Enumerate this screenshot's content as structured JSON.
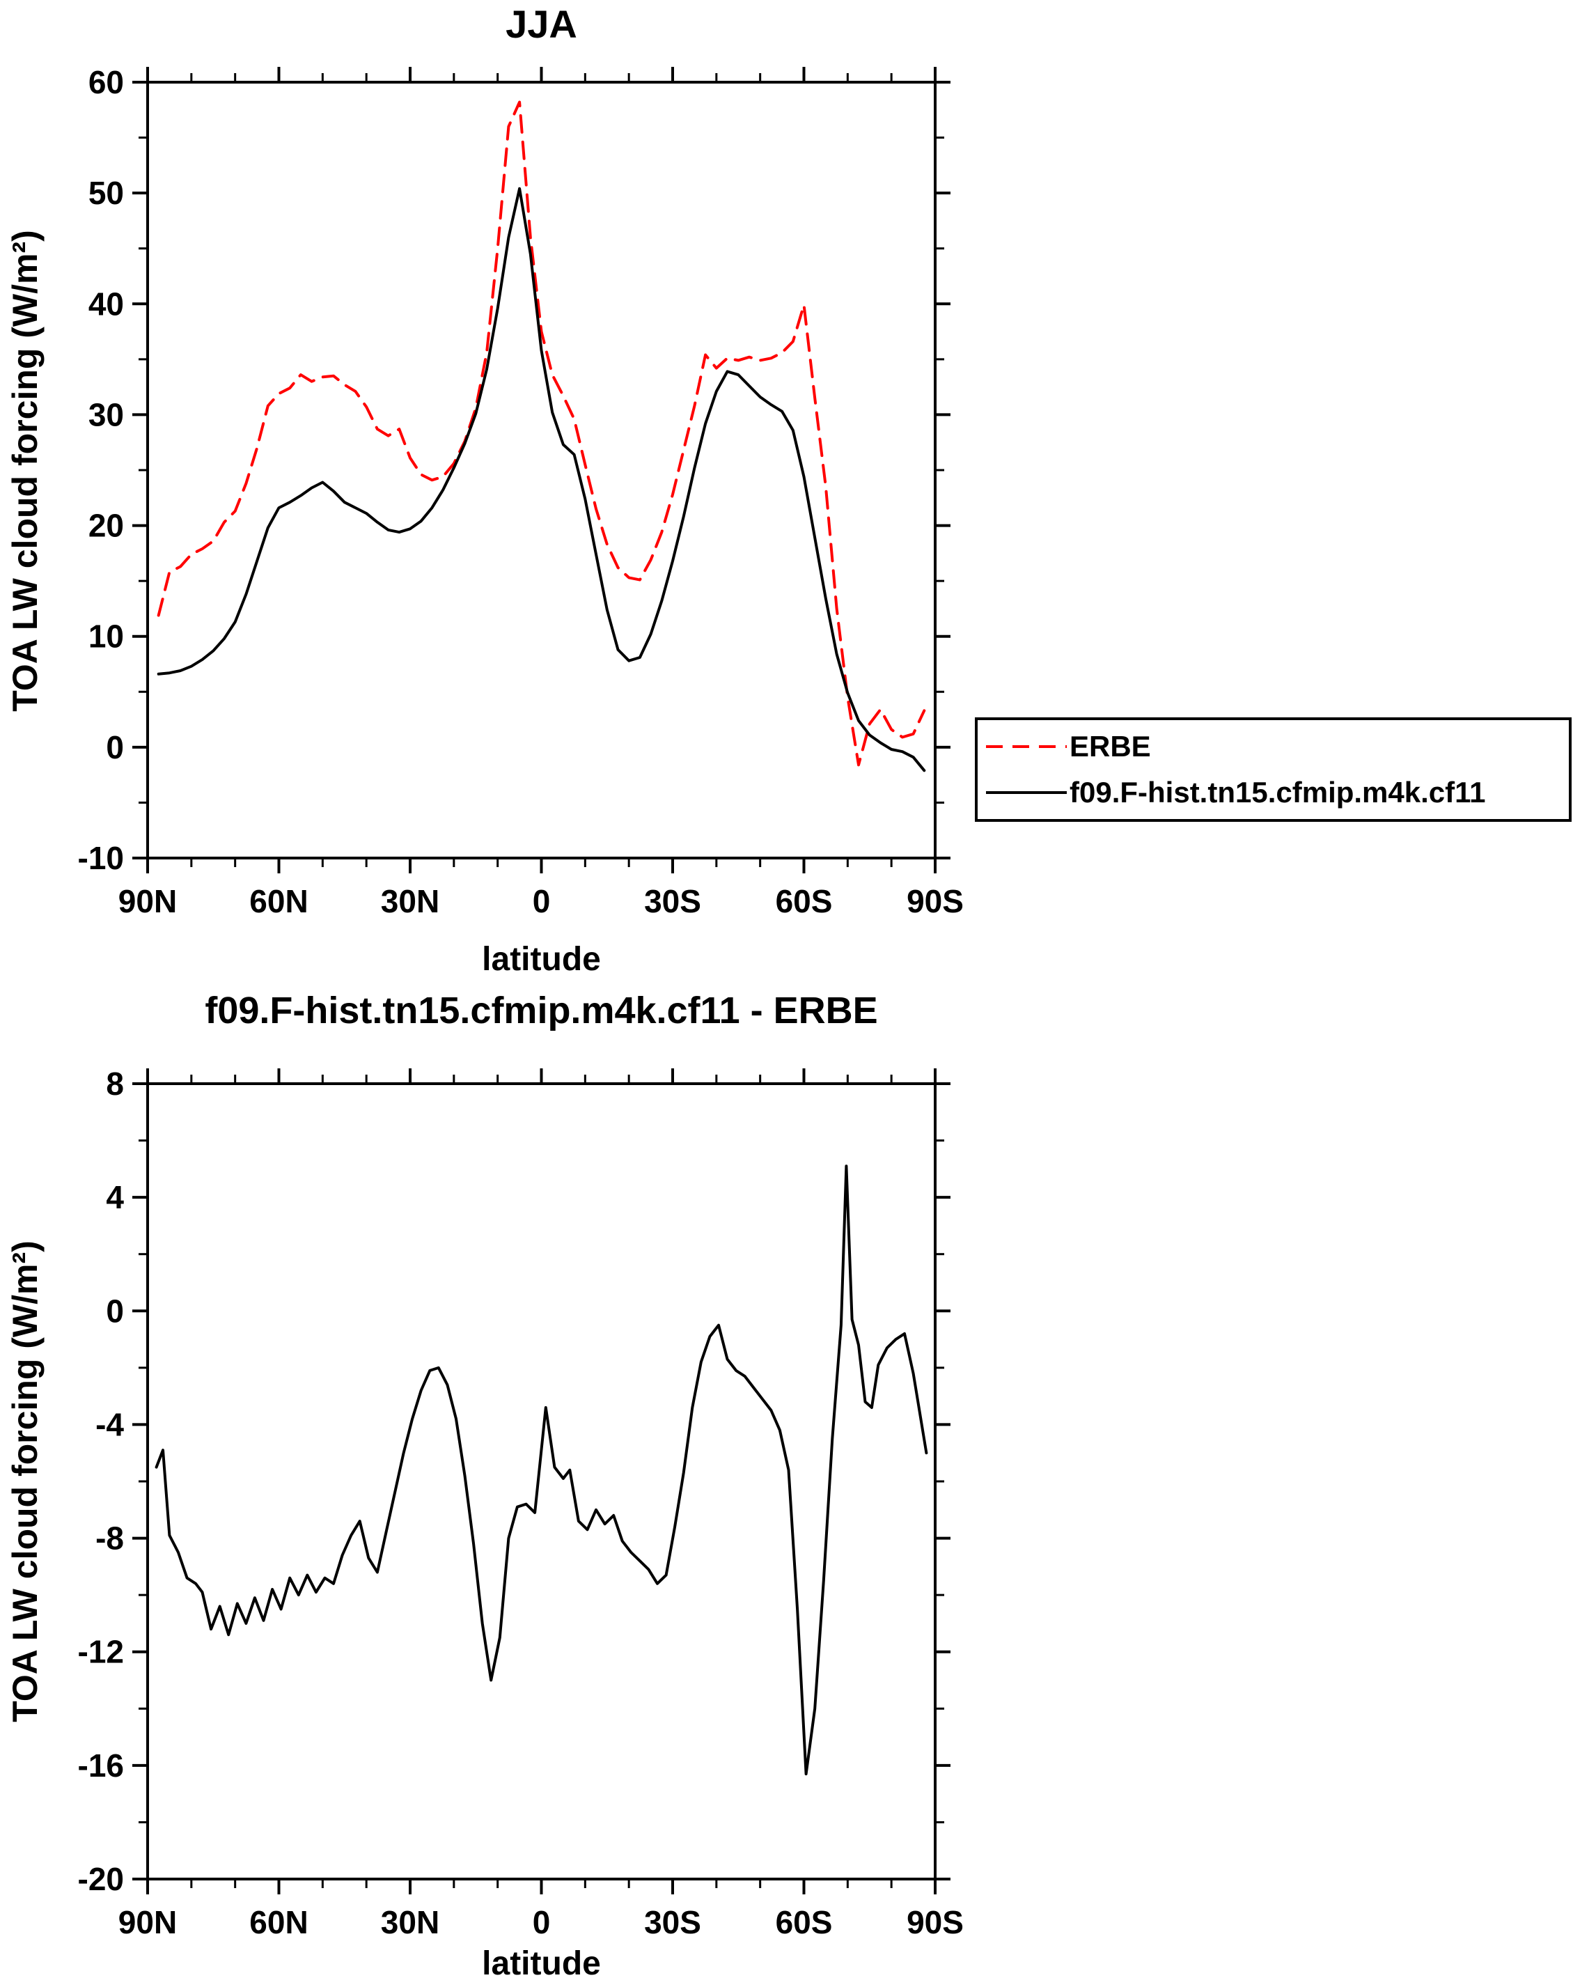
{
  "figure": {
    "background_color": "#ffffff",
    "axis_color": "#000000"
  },
  "chart_data": [
    {
      "type": "line",
      "id": "jja",
      "title": "JJA",
      "xlabel": "latitude",
      "ylabel": "TOA LW cloud forcing (W/m²)",
      "xlim": [
        90,
        -90
      ],
      "ylim": [
        -10,
        60
      ],
      "yticks": [
        -10,
        0,
        10,
        20,
        30,
        40,
        50,
        60
      ],
      "y_minor_step": 5,
      "xticks": [
        {
          "value": 90,
          "label": "90N"
        },
        {
          "value": 60,
          "label": "60N"
        },
        {
          "value": 30,
          "label": "30N"
        },
        {
          "value": 0,
          "label": "0"
        },
        {
          "value": -30,
          "label": "30S"
        },
        {
          "value": -60,
          "label": "60S"
        },
        {
          "value": -90,
          "label": "90S"
        }
      ],
      "x_minor_step": 10,
      "grid": false,
      "legend_position": "outside-right",
      "x": [
        87.5,
        85,
        82.5,
        80,
        77.5,
        75,
        72.5,
        70,
        67.5,
        65,
        62.5,
        60,
        57.5,
        55,
        52.5,
        50,
        47.5,
        45,
        42.5,
        40,
        37.5,
        35,
        32.5,
        30,
        27.5,
        25,
        22.5,
        20,
        17.5,
        15,
        12.5,
        10,
        7.5,
        5,
        2.5,
        0,
        -2.5,
        -5,
        -7.5,
        -10,
        -12.5,
        -15,
        -17.5,
        -20,
        -22.5,
        -25,
        -27.5,
        -30,
        -32.5,
        -35,
        -37.5,
        -40,
        -42.5,
        -45,
        -47.5,
        -50,
        -52.5,
        -55,
        -57.5,
        -60,
        -62.5,
        -65,
        -67.5,
        -70,
        -72.5,
        -75,
        -77.5,
        -80,
        -82.5,
        -85,
        -87.5
      ],
      "series": [
        {
          "name": "ERBE",
          "color": "#ff0000",
          "style": "dashed",
          "values": [
            11.9,
            15.8,
            16.3,
            17.4,
            17.9,
            18.6,
            20.3,
            21.3,
            23.8,
            27.0,
            30.8,
            31.9,
            32.4,
            33.6,
            33.0,
            33.4,
            33.5,
            32.7,
            32.1,
            30.7,
            28.7,
            28.1,
            28.7,
            26.1,
            24.6,
            24.1,
            24.4,
            25.6,
            27.6,
            30.6,
            35.6,
            45.0,
            56.0,
            58.2,
            46.0,
            37.5,
            33.6,
            31.7,
            29.6,
            25.5,
            21.5,
            18.3,
            16.2,
            15.3,
            15.1,
            16.9,
            19.4,
            22.8,
            26.8,
            30.8,
            35.4,
            34.2,
            35.1,
            34.9,
            35.2,
            34.9,
            35.1,
            35.6,
            36.6,
            39.9,
            31.5,
            23.5,
            12.5,
            4.5,
            -1.6,
            2.1,
            3.4,
            1.6,
            0.9,
            1.2,
            3.3
          ]
        },
        {
          "name": "f09.F-hist.tn15.cfmip.m4k.cf11",
          "color": "#000000",
          "style": "solid",
          "values": [
            6.6,
            6.7,
            6.9,
            7.3,
            7.9,
            8.7,
            9.8,
            11.3,
            13.8,
            16.8,
            19.8,
            21.6,
            22.1,
            22.7,
            23.4,
            23.9,
            23.1,
            22.1,
            21.6,
            21.1,
            20.3,
            19.6,
            19.4,
            19.7,
            20.4,
            21.6,
            23.2,
            25.2,
            27.4,
            30.1,
            34.1,
            39.6,
            46.0,
            50.4,
            44.5,
            35.8,
            30.2,
            27.3,
            26.4,
            22.4,
            17.4,
            12.4,
            8.8,
            7.8,
            8.1,
            10.2,
            13.2,
            16.8,
            20.8,
            25.2,
            29.2,
            32.1,
            33.9,
            33.6,
            32.6,
            31.6,
            30.9,
            30.3,
            28.6,
            24.4,
            18.9,
            13.4,
            8.4,
            4.9,
            2.4,
            1.1,
            0.4,
            -0.2,
            -0.4,
            -0.9,
            -2.1
          ]
        }
      ]
    },
    {
      "type": "line",
      "id": "diff",
      "title": "f09.F-hist.tn15.cfmip.m4k.cf11 - ERBE",
      "xlabel": "latitude",
      "ylabel": "TOA LW cloud forcing (W/m²)",
      "xlim": [
        90,
        -90
      ],
      "ylim": [
        -20,
        8
      ],
      "yticks": [
        -20,
        -16,
        -12,
        -8,
        -4,
        0,
        4,
        8
      ],
      "y_minor_step": 2,
      "xticks": [
        {
          "value": 90,
          "label": "90N"
        },
        {
          "value": 60,
          "label": "60N"
        },
        {
          "value": 30,
          "label": "30N"
        },
        {
          "value": 0,
          "label": "0"
        },
        {
          "value": -30,
          "label": "30S"
        },
        {
          "value": -60,
          "label": "60S"
        },
        {
          "value": -90,
          "label": "90S"
        }
      ],
      "x_minor_step": 10,
      "grid": false,
      "legend_position": "none",
      "series": [
        {
          "name": "f09.F-hist.tn15.cfmip.m4k.cf11 - ERBE",
          "color": "#000000",
          "style": "solid",
          "x": [
            88,
            86.5,
            85,
            83,
            81,
            79,
            77.5,
            75.5,
            73.5,
            71.5,
            69.5,
            67.5,
            65.5,
            63.5,
            61.5,
            59.5,
            57.5,
            55.5,
            53.5,
            51.5,
            49.5,
            47.5,
            45.5,
            43.5,
            41.5,
            39.5,
            37.5,
            35.5,
            33.5,
            31.5,
            29.5,
            27.5,
            25.5,
            23.5,
            21.5,
            19.5,
            17.5,
            15.5,
            13.5,
            11.5,
            9.5,
            7.5,
            5.5,
            3.5,
            1.5,
            -1,
            -3,
            -5,
            -6.5,
            -8.5,
            -10.5,
            -12.5,
            -14.5,
            -16.5,
            -18.5,
            -20.5,
            -22.5,
            -24.5,
            -26.5,
            -28.5,
            -30.5,
            -32.5,
            -34.5,
            -36.5,
            -38.5,
            -40.5,
            -42.5,
            -44.5,
            -46.5,
            -48.5,
            -50.5,
            -52.5,
            -54.5,
            -56.5,
            -58.5,
            -60.5,
            -62.5,
            -64.5,
            -66.5,
            -68.5,
            -69.7,
            -71,
            -72.5,
            -74,
            -75.5,
            -77,
            -79,
            -81,
            -83,
            -85,
            -86.5,
            -88
          ],
          "values": [
            -5.5,
            -4.9,
            -7.9,
            -8.5,
            -9.4,
            -9.6,
            -9.9,
            -11.2,
            -10.4,
            -11.4,
            -10.3,
            -11.0,
            -10.1,
            -10.9,
            -9.8,
            -10.5,
            -9.4,
            -10.0,
            -9.3,
            -9.9,
            -9.4,
            -9.6,
            -8.6,
            -7.9,
            -7.4,
            -8.7,
            -9.2,
            -7.8,
            -6.4,
            -5.0,
            -3.8,
            -2.8,
            -2.1,
            -2.0,
            -2.6,
            -3.8,
            -5.8,
            -8.2,
            -11.0,
            -13.0,
            -11.5,
            -8.0,
            -6.9,
            -6.8,
            -7.1,
            -3.4,
            -5.5,
            -5.9,
            -5.6,
            -7.4,
            -7.7,
            -7.0,
            -7.5,
            -7.2,
            -8.1,
            -8.5,
            -8.8,
            -9.1,
            -9.6,
            -9.3,
            -7.6,
            -5.7,
            -3.4,
            -1.8,
            -0.9,
            -0.5,
            -1.7,
            -2.1,
            -2.3,
            -2.7,
            -3.1,
            -3.5,
            -4.2,
            -5.6,
            -10.5,
            -16.3,
            -14.0,
            -9.5,
            -4.5,
            -0.5,
            5.1,
            -0.3,
            -1.2,
            -3.2,
            -3.4,
            -1.9,
            -1.3,
            -1.0,
            -0.8,
            -2.2,
            -3.6,
            -5.0
          ]
        }
      ]
    }
  ]
}
